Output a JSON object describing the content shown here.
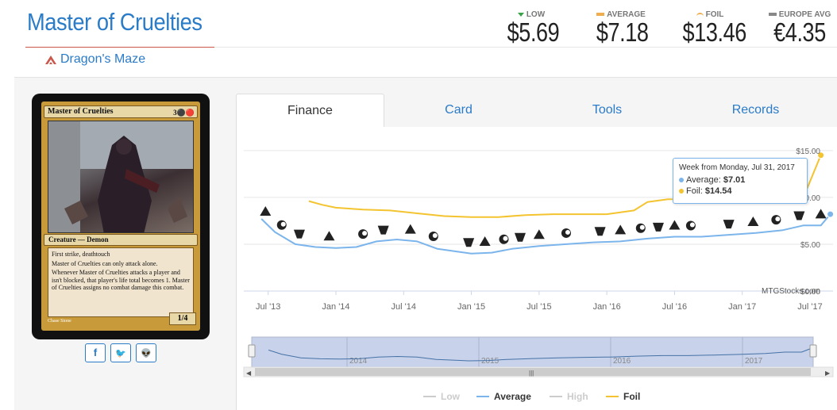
{
  "header": {
    "title": "Master of Cruelties",
    "set_name": "Dragon's Maze"
  },
  "prices": [
    {
      "label": "LOW",
      "value": "$5.69",
      "marker_color": "#3aa34a",
      "marker": "triangle"
    },
    {
      "label": "AVERAGE",
      "value": "$7.18",
      "marker_color": "#f0ad4e",
      "marker": "bar"
    },
    {
      "label": "FOIL",
      "value": "$13.46",
      "marker_color": "#f0ad4e",
      "marker": "arc"
    },
    {
      "label": "EUROPE AVG",
      "value": "€4.35",
      "marker_color": "#888888",
      "marker": "bar"
    }
  ],
  "card": {
    "name": "Master of Cruelties",
    "mana_cost": "3⚫🔴",
    "type_line": "Creature — Demon",
    "rules": [
      "First strike, deathtouch",
      "Master of Cruelties can only attack alone.",
      "Whenever Master of Cruelties attacks a player and isn't blocked, that player's life total becomes 1. Master of Cruelties assigns no combat damage this combat."
    ],
    "pt": "1/4",
    "artist": "Chase Stone"
  },
  "share": {
    "facebook": "f",
    "twitter": "🐦",
    "reddit": "👽"
  },
  "tabs": [
    {
      "label": "Finance",
      "active": true
    },
    {
      "label": "Card",
      "active": false
    },
    {
      "label": "Tools",
      "active": false
    },
    {
      "label": "Records",
      "active": false
    }
  ],
  "tooltip": {
    "heading": "Week from Monday, Jul 31, 2017",
    "average_label": "Average: ",
    "average_value": "$7.01",
    "foil_label": "Foil: ",
    "foil_value": "$14.54"
  },
  "watermark": "MTGStocks.com",
  "legend": [
    {
      "label": "Low",
      "color": "#cccccc",
      "active": false
    },
    {
      "label": "Average",
      "color": "#7cb5ec",
      "active": true
    },
    {
      "label": "High",
      "color": "#cccccc",
      "active": false
    },
    {
      "label": "Foil",
      "color": "#f4c430",
      "active": true
    }
  ],
  "chart_data": {
    "type": "line",
    "x_tick_labels": [
      "Jul '13",
      "Jan '14",
      "Jul '14",
      "Jan '15",
      "Jul '15",
      "Jan '16",
      "Jul '16",
      "Jan '17",
      "Jul '17"
    ],
    "y_tick_labels": [
      "$0.00",
      "$5.00",
      "$10.00",
      "$15.00"
    ],
    "ylim": [
      0,
      16
    ],
    "series": [
      {
        "name": "Average",
        "color": "#7cb5ec",
        "values": [
          [
            2013.45,
            7.7
          ],
          [
            2013.55,
            6.3
          ],
          [
            2013.7,
            5.0
          ],
          [
            2013.85,
            4.7
          ],
          [
            2014.0,
            4.6
          ],
          [
            2014.15,
            4.7
          ],
          [
            2014.3,
            5.3
          ],
          [
            2014.45,
            5.5
          ],
          [
            2014.6,
            5.3
          ],
          [
            2014.75,
            4.5
          ],
          [
            2014.9,
            4.2
          ],
          [
            2015.0,
            4.0
          ],
          [
            2015.15,
            4.1
          ],
          [
            2015.3,
            4.5
          ],
          [
            2015.5,
            4.8
          ],
          [
            2015.7,
            5.0
          ],
          [
            2015.9,
            5.2
          ],
          [
            2016.1,
            5.3
          ],
          [
            2016.3,
            5.6
          ],
          [
            2016.5,
            5.8
          ],
          [
            2016.7,
            5.8
          ],
          [
            2016.9,
            6.0
          ],
          [
            2017.1,
            6.2
          ],
          [
            2017.3,
            6.5
          ],
          [
            2017.45,
            7.0
          ],
          [
            2017.58,
            7.0
          ],
          [
            2017.65,
            8.2
          ]
        ]
      },
      {
        "name": "Foil",
        "color": "#f4c430",
        "values": [
          [
            2013.8,
            9.6
          ],
          [
            2013.9,
            9.2
          ],
          [
            2014.0,
            8.9
          ],
          [
            2014.2,
            8.7
          ],
          [
            2014.4,
            8.6
          ],
          [
            2014.6,
            8.3
          ],
          [
            2014.8,
            8.0
          ],
          [
            2015.0,
            7.9
          ],
          [
            2015.2,
            7.9
          ],
          [
            2015.4,
            8.1
          ],
          [
            2015.6,
            8.2
          ],
          [
            2015.8,
            8.2
          ],
          [
            2016.0,
            8.2
          ],
          [
            2016.2,
            8.6
          ],
          [
            2016.3,
            9.5
          ],
          [
            2016.45,
            9.8
          ],
          [
            2016.6,
            9.8
          ],
          [
            2016.8,
            9.9
          ],
          [
            2017.0,
            10.0
          ],
          [
            2017.2,
            10.1
          ],
          [
            2017.35,
            10.6
          ],
          [
            2017.48,
            11.0
          ],
          [
            2017.58,
            14.5
          ]
        ]
      }
    ],
    "navigator_labels": [
      "2014",
      "2015",
      "2016",
      "2017"
    ],
    "legend_position": "bottom"
  }
}
